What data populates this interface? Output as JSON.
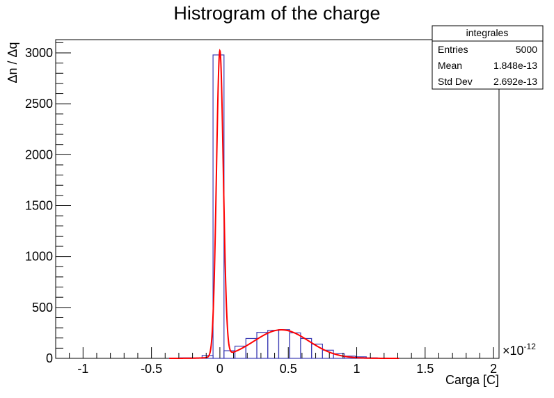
{
  "chart_data": {
    "type": "bar",
    "title": "Histrogram of the charge",
    "xlabel": "Carga [C]",
    "ylabel": "Δn / Δq",
    "x_exponent_label": "×10",
    "x_exponent_power": "-12",
    "xlim": [
      -1.2,
      2.04
    ],
    "ylim": [
      0,
      3130
    ],
    "x_ticks": [
      -1,
      -0.5,
      0,
      0.5,
      1,
      1.5,
      2
    ],
    "x_tick_labels": [
      "-1",
      "-0.5",
      "0",
      "0.5",
      "1",
      "1.5",
      "2"
    ],
    "y_ticks": [
      0,
      500,
      1000,
      1500,
      2000,
      2500,
      3000
    ],
    "y_tick_labels": [
      "0",
      "500",
      "1000",
      "1500",
      "2000",
      "2500",
      "3000"
    ],
    "grid": false,
    "histogram": {
      "color": "#3c3cb4",
      "bins": [
        {
          "x0": -0.37,
          "x1": -0.29,
          "value": 3
        },
        {
          "x0": -0.29,
          "x1": -0.21,
          "value": 5
        },
        {
          "x0": -0.21,
          "x1": -0.13,
          "value": 4
        },
        {
          "x0": -0.13,
          "x1": -0.05,
          "value": 28
        },
        {
          "x0": -0.05,
          "x1": 0.03,
          "value": 2980
        },
        {
          "x0": 0.03,
          "x1": 0.11,
          "value": 75
        },
        {
          "x0": 0.11,
          "x1": 0.19,
          "value": 120
        },
        {
          "x0": 0.19,
          "x1": 0.27,
          "value": 195
        },
        {
          "x0": 0.27,
          "x1": 0.35,
          "value": 255
        },
        {
          "x0": 0.35,
          "x1": 0.43,
          "value": 275
        },
        {
          "x0": 0.43,
          "x1": 0.51,
          "value": 282
        },
        {
          "x0": 0.51,
          "x1": 0.59,
          "value": 250
        },
        {
          "x0": 0.59,
          "x1": 0.67,
          "value": 195
        },
        {
          "x0": 0.67,
          "x1": 0.75,
          "value": 140
        },
        {
          "x0": 0.75,
          "x1": 0.83,
          "value": 80
        },
        {
          "x0": 0.83,
          "x1": 0.91,
          "value": 45
        },
        {
          "x0": 0.91,
          "x1": 0.99,
          "value": 22
        },
        {
          "x0": 0.99,
          "x1": 1.07,
          "value": 15
        },
        {
          "x0": 1.07,
          "x1": 1.15,
          "value": 5
        },
        {
          "x0": 1.15,
          "x1": 1.23,
          "value": 3
        },
        {
          "x0": 1.23,
          "x1": 1.31,
          "value": 2
        }
      ]
    },
    "fit": {
      "color": "#ff0000",
      "components": [
        {
          "amplitude": 3000,
          "mean": 0.0,
          "sigma": 0.025
        },
        {
          "amplitude": 280,
          "mean": 0.45,
          "sigma": 0.2
        }
      ],
      "x_range": [
        -0.37,
        1.31
      ]
    },
    "stats_box": {
      "title": "integrales",
      "rows": [
        {
          "label": "Entries",
          "value": "5000"
        },
        {
          "label": "Mean",
          "value": "1.848e-13"
        },
        {
          "label": "Std Dev",
          "value": "2.692e-13"
        }
      ]
    }
  }
}
